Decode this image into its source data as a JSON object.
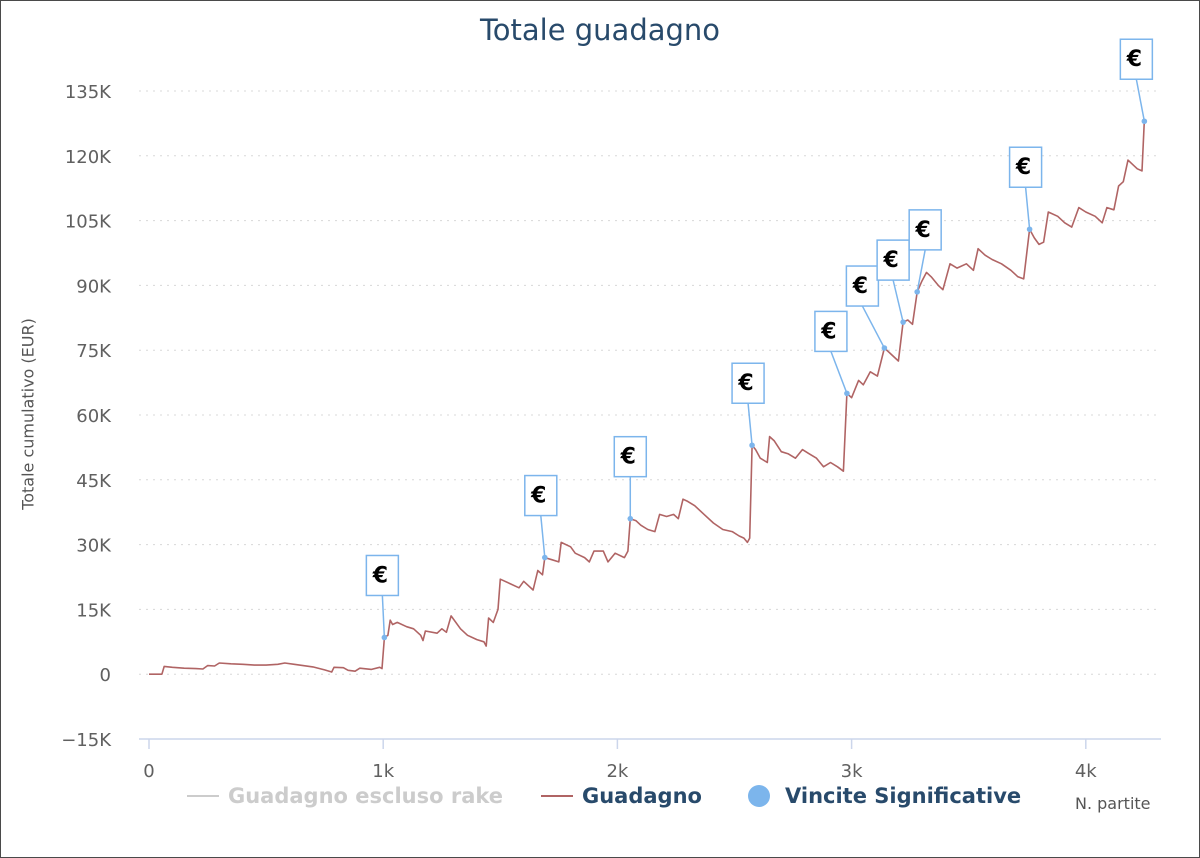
{
  "chart_data": {
    "type": "line",
    "title": "Totale guadagno",
    "xlabel": "N. partite",
    "ylabel": "Totale cumulativo (EUR)",
    "xlim": [
      -50,
      4300
    ],
    "ylim": [
      -15000,
      135000
    ],
    "x_ticks": [
      0,
      1000,
      2000,
      3000,
      4000
    ],
    "x_tick_labels": [
      "0",
      "1k",
      "2k",
      "3k",
      "4k"
    ],
    "y_ticks": [
      -15000,
      0,
      15000,
      30000,
      45000,
      60000,
      75000,
      90000,
      105000,
      120000,
      135000
    ],
    "y_tick_labels": [
      "−15K",
      "0",
      "15K",
      "30K",
      "45K",
      "60K",
      "75K",
      "90K",
      "105K",
      "120K",
      "135K"
    ],
    "grid": "horizontal-dotted",
    "legend_position": "bottom",
    "series": [
      {
        "name": "Guadagno escluso rake",
        "visible": false,
        "color": "#cccccc",
        "points": []
      },
      {
        "name": "Guadagno",
        "visible": true,
        "color": "#b06464",
        "points": [
          [
            0,
            0
          ],
          [
            35,
            0
          ],
          [
            55,
            0
          ],
          [
            65,
            1800
          ],
          [
            100,
            1600
          ],
          [
            150,
            1400
          ],
          [
            200,
            1300
          ],
          [
            230,
            1200
          ],
          [
            250,
            2000
          ],
          [
            280,
            1900
          ],
          [
            300,
            2600
          ],
          [
            350,
            2400
          ],
          [
            400,
            2300
          ],
          [
            450,
            2100
          ],
          [
            500,
            2100
          ],
          [
            550,
            2300
          ],
          [
            580,
            2600
          ],
          [
            620,
            2300
          ],
          [
            700,
            1700
          ],
          [
            750,
            1000
          ],
          [
            780,
            500
          ],
          [
            790,
            1600
          ],
          [
            830,
            1500
          ],
          [
            850,
            900
          ],
          [
            880,
            700
          ],
          [
            900,
            1400
          ],
          [
            950,
            1100
          ],
          [
            985,
            1600
          ],
          [
            995,
            1300
          ],
          [
            1005,
            8500
          ],
          [
            1020,
            9000
          ],
          [
            1030,
            12500
          ],
          [
            1040,
            11500
          ],
          [
            1060,
            12000
          ],
          [
            1100,
            11000
          ],
          [
            1130,
            10500
          ],
          [
            1160,
            9000
          ],
          [
            1170,
            7800
          ],
          [
            1180,
            10000
          ],
          [
            1230,
            9500
          ],
          [
            1250,
            10500
          ],
          [
            1270,
            9700
          ],
          [
            1290,
            13500
          ],
          [
            1330,
            10500
          ],
          [
            1360,
            9000
          ],
          [
            1400,
            8000
          ],
          [
            1430,
            7500
          ],
          [
            1440,
            6500
          ],
          [
            1450,
            13000
          ],
          [
            1470,
            12000
          ],
          [
            1490,
            15000
          ],
          [
            1500,
            22000
          ],
          [
            1540,
            21000
          ],
          [
            1580,
            20000
          ],
          [
            1600,
            21500
          ],
          [
            1640,
            19500
          ],
          [
            1660,
            24000
          ],
          [
            1680,
            23000
          ],
          [
            1690,
            27000
          ],
          [
            1720,
            26500
          ],
          [
            1750,
            26000
          ],
          [
            1760,
            30500
          ],
          [
            1800,
            29500
          ],
          [
            1820,
            28000
          ],
          [
            1860,
            27000
          ],
          [
            1880,
            26000
          ],
          [
            1900,
            28500
          ],
          [
            1940,
            28500
          ],
          [
            1960,
            26000
          ],
          [
            1990,
            28000
          ],
          [
            2030,
            27000
          ],
          [
            2045,
            28500
          ],
          [
            2055,
            36000
          ],
          [
            2080,
            35500
          ],
          [
            2100,
            34500
          ],
          [
            2130,
            33500
          ],
          [
            2160,
            33000
          ],
          [
            2180,
            37000
          ],
          [
            2210,
            36500
          ],
          [
            2240,
            37000
          ],
          [
            2260,
            36000
          ],
          [
            2280,
            40500
          ],
          [
            2300,
            40000
          ],
          [
            2330,
            39000
          ],
          [
            2370,
            37000
          ],
          [
            2410,
            35000
          ],
          [
            2450,
            33500
          ],
          [
            2490,
            33000
          ],
          [
            2520,
            32000
          ],
          [
            2540,
            31500
          ],
          [
            2555,
            30500
          ],
          [
            2565,
            31500
          ],
          [
            2575,
            53000
          ],
          [
            2590,
            52000
          ],
          [
            2610,
            50000
          ],
          [
            2640,
            49000
          ],
          [
            2650,
            55000
          ],
          [
            2670,
            54000
          ],
          [
            2700,
            51500
          ],
          [
            2730,
            51000
          ],
          [
            2760,
            50000
          ],
          [
            2790,
            52000
          ],
          [
            2820,
            51000
          ],
          [
            2850,
            50000
          ],
          [
            2880,
            48000
          ],
          [
            2910,
            49000
          ],
          [
            2940,
            48000
          ],
          [
            2965,
            47000
          ],
          [
            2980,
            65000
          ],
          [
            3000,
            64000
          ],
          [
            3030,
            68000
          ],
          [
            3050,
            67000
          ],
          [
            3080,
            70000
          ],
          [
            3110,
            69000
          ],
          [
            3140,
            75500
          ],
          [
            3170,
            74000
          ],
          [
            3200,
            72500
          ],
          [
            3220,
            81500
          ],
          [
            3240,
            82000
          ],
          [
            3260,
            81000
          ],
          [
            3280,
            88500
          ],
          [
            3300,
            91000
          ],
          [
            3320,
            93000
          ],
          [
            3340,
            92000
          ],
          [
            3370,
            90000
          ],
          [
            3390,
            89000
          ],
          [
            3420,
            95000
          ],
          [
            3450,
            94000
          ],
          [
            3490,
            95000
          ],
          [
            3520,
            93500
          ],
          [
            3540,
            98500
          ],
          [
            3570,
            97000
          ],
          [
            3600,
            96000
          ],
          [
            3640,
            95000
          ],
          [
            3680,
            93500
          ],
          [
            3710,
            92000
          ],
          [
            3735,
            91500
          ],
          [
            3760,
            103000
          ],
          [
            3780,
            101000
          ],
          [
            3800,
            99500
          ],
          [
            3820,
            100000
          ],
          [
            3840,
            107000
          ],
          [
            3880,
            106000
          ],
          [
            3910,
            104500
          ],
          [
            3940,
            103500
          ],
          [
            3970,
            108000
          ],
          [
            4000,
            107000
          ],
          [
            4040,
            106000
          ],
          [
            4070,
            104500
          ],
          [
            4090,
            108000
          ],
          [
            4120,
            107500
          ],
          [
            4140,
            113000
          ],
          [
            4160,
            114000
          ],
          [
            4180,
            119000
          ],
          [
            4200,
            118000
          ],
          [
            4220,
            117000
          ],
          [
            4240,
            116500
          ],
          [
            4250,
            128000
          ]
        ]
      },
      {
        "name": "Vincite Significative",
        "visible": true,
        "type": "flags",
        "color": "#7cb5ec",
        "points": [
          [
            1005,
            8500
          ],
          [
            1690,
            27000
          ],
          [
            2055,
            36000
          ],
          [
            2575,
            53000
          ],
          [
            2980,
            65000
          ],
          [
            3140,
            75500
          ],
          [
            3220,
            81500
          ],
          [
            3280,
            88500
          ],
          [
            3760,
            103000
          ],
          [
            4250,
            128000
          ]
        ],
        "flag_label": "€"
      }
    ]
  },
  "legend": {
    "items": [
      "Guadagno escluso rake",
      "Guadagno",
      "Vincite Significative"
    ]
  }
}
